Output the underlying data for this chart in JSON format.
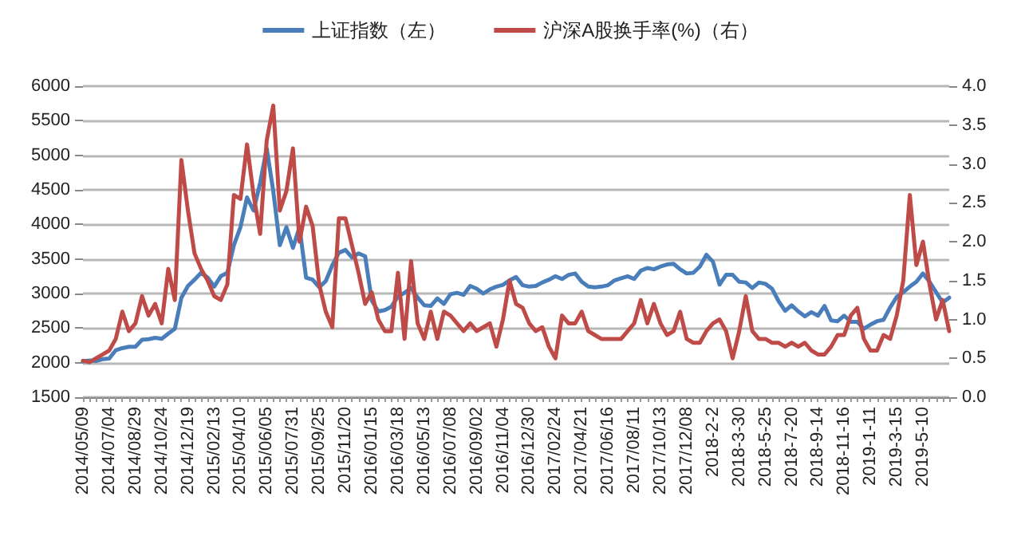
{
  "chart_data": {
    "type": "line",
    "categories": [
      "2014/05/09",
      null,
      null,
      null,
      "2014/07/04",
      null,
      null,
      null,
      "2014/08/29",
      null,
      null,
      null,
      "2014/10/24",
      null,
      null,
      null,
      "2014/12/19",
      null,
      null,
      null,
      "2015/02/13",
      null,
      null,
      null,
      "2015/04/10",
      null,
      null,
      null,
      "2015/06/05",
      null,
      null,
      null,
      "2015/07/31",
      null,
      null,
      null,
      "2015/09/25",
      null,
      null,
      null,
      "2015/11/20",
      null,
      null,
      null,
      "2016/01/15",
      null,
      null,
      null,
      "2016/03/18",
      null,
      null,
      null,
      "2016/05/13",
      null,
      null,
      null,
      "2016/07/08",
      null,
      null,
      null,
      "2016/09/02",
      null,
      null,
      null,
      "2016/11/04",
      null,
      null,
      null,
      "2016/12/30",
      null,
      null,
      null,
      "2017/02/24",
      null,
      null,
      null,
      "2017/04/21",
      null,
      null,
      null,
      "2017/06/16",
      null,
      null,
      null,
      "2017/08/11",
      null,
      null,
      null,
      "2017/10/13",
      null,
      null,
      null,
      "2017/12/08",
      null,
      null,
      null,
      "2018-2-2",
      null,
      null,
      null,
      "2018-3-30",
      null,
      null,
      null,
      "2018-5-25",
      null,
      null,
      null,
      "2018-7-20",
      null,
      null,
      null,
      "2018-9-14",
      null,
      null,
      null,
      "2018-11-16",
      null,
      null,
      null,
      "2019-1-11",
      null,
      null,
      null,
      "2019-3-15",
      null,
      null,
      null,
      "2019-5-10",
      null,
      null,
      null,
      null
    ],
    "series": [
      {
        "name": "上证指数（左）",
        "color": "#4a7ebb",
        "values": [
          2020,
          2030,
          2025,
          2050,
          2060,
          2180,
          2210,
          2230,
          2230,
          2330,
          2340,
          2360,
          2345,
          2420,
          2490,
          2940,
          3110,
          3200,
          3300,
          3230,
          3100,
          3250,
          3300,
          3700,
          3960,
          4390,
          4200,
          4600,
          5100,
          4480,
          3700,
          3960,
          3660,
          3960,
          3230,
          3200,
          3090,
          3180,
          3410,
          3590,
          3630,
          3520,
          3580,
          3540,
          2900,
          2740,
          2760,
          2810,
          2955,
          3010,
          3080,
          2940,
          2830,
          2820,
          2930,
          2850,
          2990,
          3010,
          2980,
          3110,
          3070,
          3000,
          3060,
          3100,
          3125,
          3190,
          3240,
          3120,
          3100,
          3110,
          3160,
          3200,
          3250,
          3210,
          3270,
          3290,
          3170,
          3100,
          3090,
          3100,
          3120,
          3190,
          3220,
          3250,
          3210,
          3330,
          3370,
          3350,
          3390,
          3420,
          3430,
          3350,
          3290,
          3300,
          3390,
          3560,
          3460,
          3130,
          3270,
          3270,
          3170,
          3160,
          3080,
          3160,
          3140,
          3070,
          2890,
          2750,
          2830,
          2740,
          2670,
          2730,
          2680,
          2820,
          2610,
          2600,
          2680,
          2590,
          2590,
          2490,
          2550,
          2600,
          2620,
          2800,
          2950,
          3020,
          3100,
          3170,
          3290,
          3170,
          3020,
          2870,
          2940
        ]
      },
      {
        "name": "沪深A股换手率(%)（右）",
        "color": "#be4b48",
        "axis": "y2",
        "values": [
          0.47,
          0.45,
          0.5,
          0.55,
          0.6,
          0.75,
          1.1,
          0.85,
          0.95,
          1.3,
          1.05,
          1.2,
          0.95,
          1.65,
          1.25,
          3.05,
          2.4,
          1.85,
          1.65,
          1.5,
          1.3,
          1.25,
          1.45,
          2.6,
          2.55,
          3.25,
          2.6,
          2.1,
          3.3,
          3.75,
          2.4,
          2.65,
          3.2,
          2.0,
          2.45,
          2.2,
          1.45,
          1.1,
          0.9,
          2.3,
          2.3,
          1.95,
          1.6,
          1.2,
          1.35,
          1.0,
          0.85,
          0.85,
          1.6,
          0.75,
          1.75,
          0.95,
          0.75,
          1.1,
          0.75,
          1.1,
          1.05,
          0.95,
          0.85,
          0.95,
          0.85,
          0.9,
          0.95,
          0.65,
          1.0,
          1.5,
          1.2,
          1.15,
          0.95,
          0.85,
          0.9,
          0.65,
          0.5,
          1.05,
          0.95,
          0.95,
          1.1,
          0.85,
          0.8,
          0.75,
          0.75,
          0.75,
          0.75,
          0.85,
          0.95,
          1.25,
          0.95,
          1.2,
          0.95,
          0.8,
          0.85,
          1.1,
          0.75,
          0.7,
          0.7,
          0.85,
          0.95,
          1.0,
          0.85,
          0.5,
          0.85,
          1.3,
          0.85,
          0.75,
          0.75,
          0.7,
          0.7,
          0.65,
          0.7,
          0.65,
          0.7,
          0.6,
          0.55,
          0.55,
          0.65,
          0.8,
          0.8,
          1.05,
          1.15,
          0.75,
          0.6,
          0.6,
          0.8,
          0.75,
          1.05,
          1.5,
          2.6,
          1.7,
          2.0,
          1.45,
          1.0,
          1.25,
          0.85
        ]
      }
    ],
    "ylim": [
      1500,
      6000
    ],
    "yticks": [
      1500,
      2000,
      2500,
      3000,
      3500,
      4000,
      4500,
      5000,
      5500,
      6000
    ],
    "y2lim": [
      0,
      4
    ],
    "y2ticks": [
      {
        "value": 0,
        "label": "0.0"
      },
      {
        "value": 0.5,
        "label": "0.5"
      },
      {
        "value": 1,
        "label": "1.0"
      },
      {
        "value": 1.5,
        "label": "1.5"
      },
      {
        "value": 2,
        "label": "2.0"
      },
      {
        "value": 2.5,
        "label": "2.5"
      },
      {
        "value": 3,
        "label": "3.0"
      },
      {
        "value": 3.5,
        "label": "3.5"
      },
      {
        "value": 4,
        "label": "4.0"
      }
    ],
    "grid": "y",
    "legend": "top",
    "marker": "none",
    "line_style": "solid"
  }
}
